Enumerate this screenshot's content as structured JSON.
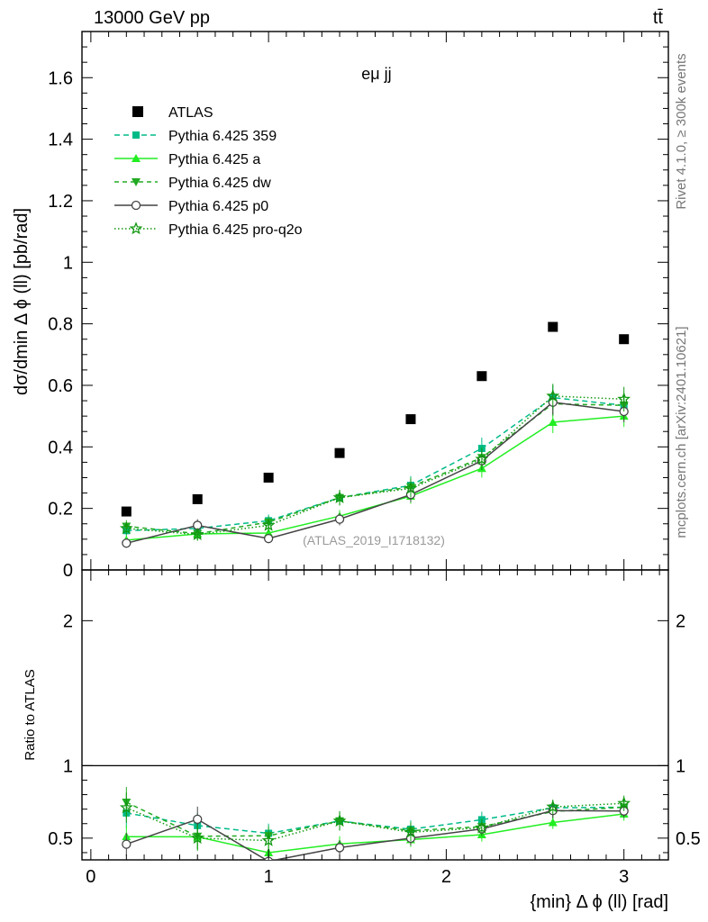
{
  "header": {
    "energy_label": "13000 GeV pp",
    "process_label": "tt̄"
  },
  "side_labels": {
    "rivet": "Rivet 4.1.0, ≥ 300k events",
    "mcplots": "mcplots.cern.ch [arXiv:2401.10621]"
  },
  "chart_data": {
    "type": "scatter",
    "title": "eμ jj",
    "watermark": "(ATLAS_2019_I1718132)",
    "xlabel": "{min} Δ ϕ (ll) [rad]",
    "ylabel": "dσ/dmin Δ ϕ (ll) [pb/rad]",
    "ratio_ylabel": "Ratio to ATLAS",
    "xlim": [
      -0.05,
      3.25
    ],
    "ylim": [
      0,
      1.75
    ],
    "ratio_ylim": [
      0.35,
      2.35
    ],
    "x_ticks": [
      0,
      1,
      2,
      3
    ],
    "x_tick_labels": [
      "0",
      "1",
      "2",
      "3"
    ],
    "y_ticks": [
      0,
      0.2,
      0.4,
      0.6,
      0.8,
      1,
      1.2,
      1.4,
      1.6
    ],
    "y_tick_labels": [
      "0",
      "0.2",
      "0.4",
      "0.6",
      "0.8",
      "1",
      "1.2",
      "1.4",
      "1.6"
    ],
    "ratio_ticks": [
      0.5,
      1,
      2
    ],
    "ratio_tick_labels": [
      "0.5",
      "1",
      "2"
    ],
    "x": [
      0.2,
      0.6,
      1.0,
      1.4,
      1.8,
      2.2,
      2.6,
      3.0
    ],
    "data": {
      "name": "ATLAS",
      "values": [
        0.19,
        0.23,
        0.3,
        0.38,
        0.49,
        0.63,
        0.79,
        0.75
      ]
    },
    "series": [
      {
        "name": "Pythia 6.425 359",
        "color": "#00bb88",
        "marker": "square",
        "dash": "6,4",
        "values": [
          0.128,
          0.135,
          0.16,
          0.235,
          0.275,
          0.395,
          0.56,
          0.535
        ],
        "errors": [
          0.02,
          0.02,
          0.02,
          0.025,
          0.03,
          0.035,
          0.04,
          0.04
        ]
      },
      {
        "name": "Pythia 6.425 a",
        "color": "#22ee22",
        "marker": "triangle-up",
        "dash": "",
        "values": [
          0.097,
          0.117,
          0.12,
          0.175,
          0.24,
          0.33,
          0.48,
          0.5
        ],
        "errors": [
          0.015,
          0.02,
          0.02,
          0.02,
          0.025,
          0.03,
          0.035,
          0.035
        ]
      },
      {
        "name": "Pythia 6.425 dw",
        "color": "#22aa22",
        "marker": "triangle-down",
        "dash": "5,4",
        "values": [
          0.142,
          0.118,
          0.155,
          0.235,
          0.27,
          0.365,
          0.54,
          0.535
        ],
        "errors": [
          0.02,
          0.02,
          0.02,
          0.025,
          0.03,
          0.035,
          0.04,
          0.04
        ]
      },
      {
        "name": "Pythia 6.425 p0",
        "color": "#444444",
        "marker": "circle-open",
        "dash": "",
        "values": [
          0.087,
          0.145,
          0.102,
          0.165,
          0.245,
          0.355,
          0.545,
          0.515
        ],
        "errors": [
          0.015,
          0.02,
          0.015,
          0.02,
          0.025,
          0.03,
          0.04,
          0.035
        ]
      },
      {
        "name": "Pythia 6.425 pro-q2o",
        "color": "#119911",
        "marker": "star",
        "dash": "1.5,2.5",
        "values": [
          0.135,
          0.115,
          0.145,
          0.235,
          0.265,
          0.36,
          0.565,
          0.555
        ],
        "errors": [
          0.02,
          0.02,
          0.02,
          0.025,
          0.03,
          0.035,
          0.04,
          0.04
        ]
      }
    ]
  }
}
